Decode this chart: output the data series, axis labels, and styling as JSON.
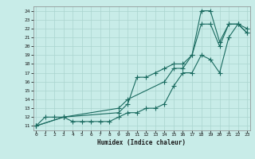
{
  "xlabel": "Humidex (Indice chaleur)",
  "bg_color": "#c8ece8",
  "grid_color": "#aad4cf",
  "line_color": "#1a6b60",
  "xlim": [
    -0.3,
    23.3
  ],
  "ylim": [
    10.5,
    24.5
  ],
  "xticks": [
    0,
    1,
    2,
    3,
    4,
    5,
    6,
    7,
    8,
    9,
    10,
    11,
    12,
    13,
    14,
    15,
    16,
    17,
    18,
    19,
    20,
    21,
    22,
    23
  ],
  "yticks": [
    11,
    12,
    13,
    14,
    15,
    16,
    17,
    18,
    19,
    20,
    21,
    22,
    23,
    24
  ],
  "line1_x": [
    0,
    1,
    2,
    3,
    4,
    5,
    6,
    7,
    8,
    9,
    10,
    11,
    12,
    13,
    14,
    15,
    16,
    17,
    18,
    19,
    20,
    21,
    22,
    23
  ],
  "line1_y": [
    11,
    12,
    12,
    12,
    11.5,
    11.5,
    11.5,
    11.5,
    11.5,
    12,
    12.5,
    12.5,
    13,
    13,
    13.5,
    15.5,
    17,
    17,
    19,
    18.5,
    17,
    21,
    22.5,
    22
  ],
  "line2_x": [
    0,
    3,
    9,
    10,
    11,
    12,
    13,
    14,
    15,
    16,
    17,
    18,
    19,
    20,
    21,
    22,
    23
  ],
  "line2_y": [
    11,
    12,
    12.5,
    13.5,
    16.5,
    16.5,
    17,
    17.5,
    18,
    18,
    19,
    22.5,
    22.5,
    20,
    22.5,
    22.5,
    21.5
  ],
  "line3_x": [
    0,
    3,
    9,
    10,
    14,
    15,
    16,
    17,
    18,
    19,
    20,
    21,
    22,
    23
  ],
  "line3_y": [
    11,
    12,
    13,
    14,
    16,
    17.5,
    17.5,
    19,
    24,
    24,
    20.5,
    22.5,
    22.5,
    21.5
  ]
}
